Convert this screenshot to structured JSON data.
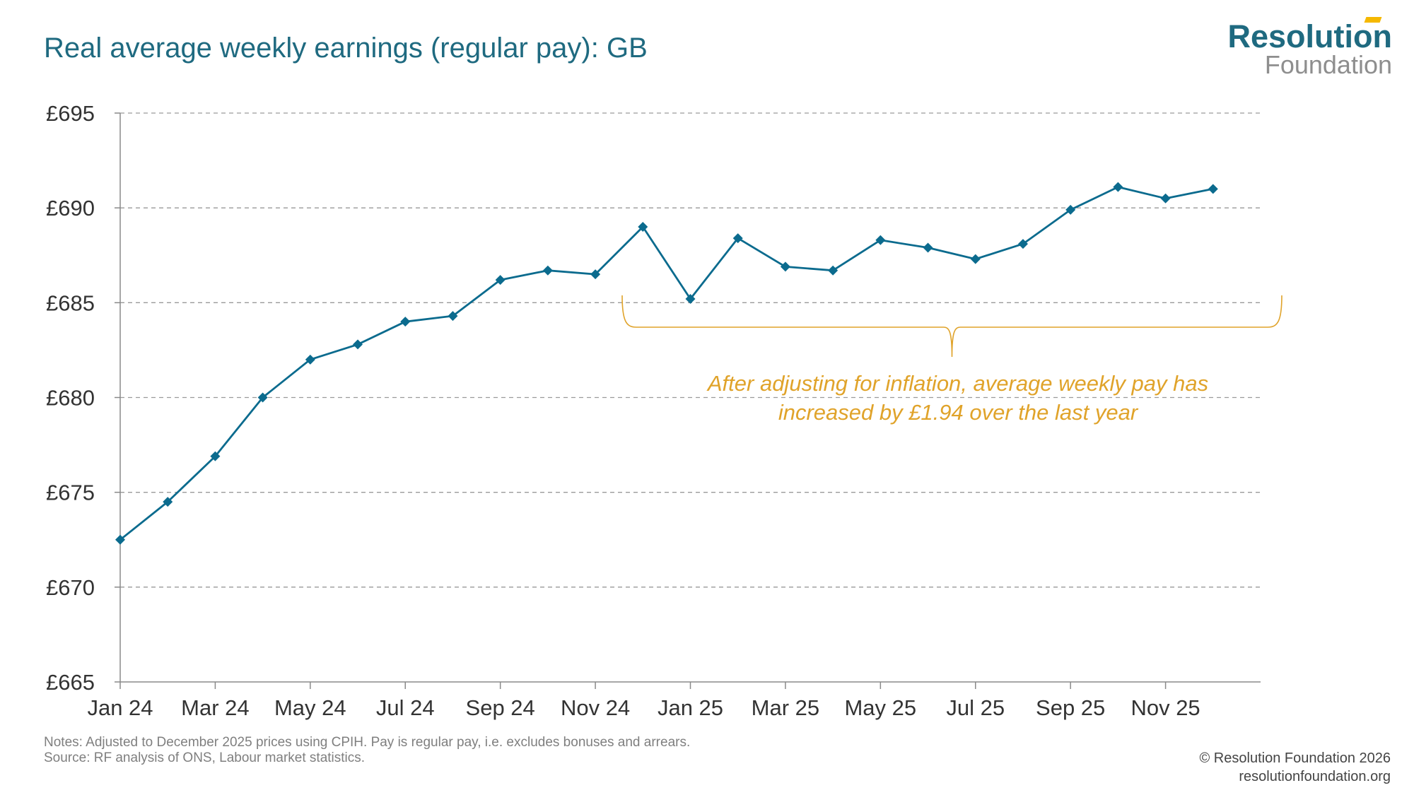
{
  "header": {
    "title": "Real average weekly earnings (regular pay): GB"
  },
  "logo": {
    "line1": "Resolution",
    "line2": "Foundation"
  },
  "footer": {
    "notes": "Notes: Adjusted to December 2025 prices using CPIH. Pay is regular pay, i.e. excludes bonuses and arrears.",
    "source": "Source: RF analysis of ONS, Labour market statistics.",
    "copyright": "© Resolution Foundation 2026",
    "website": "resolutionfoundation.org"
  },
  "colors": {
    "title": "#1f6a80",
    "line": "#0b6b8e",
    "annotation": "#e0a32a",
    "grid": "#9a9a9a"
  },
  "chart_data": {
    "type": "line",
    "title": "Real average weekly earnings (regular pay): GB",
    "xlabel": "",
    "ylabel": "",
    "ylim": [
      665,
      695
    ],
    "yticks": [
      665,
      670,
      675,
      680,
      685,
      690,
      695
    ],
    "ytick_labels": [
      "£665",
      "£670",
      "£675",
      "£680",
      "£685",
      "£690",
      "£695"
    ],
    "xtick_labels": [
      "Jan 24",
      "Mar 24",
      "May 24",
      "Jul 24",
      "Sep 24",
      "Nov 24",
      "Jan 25",
      "Mar 25",
      "May 25",
      "Jul 25",
      "Sep 25",
      "Nov 25"
    ],
    "grid": true,
    "marker": "diamond",
    "categories": [
      "Jan 24",
      "Feb 24",
      "Mar 24",
      "Apr 24",
      "May 24",
      "Jun 24",
      "Jul 24",
      "Aug 24",
      "Sep 24",
      "Oct 24",
      "Nov 24",
      "Dec 24",
      "Jan 25",
      "Feb 25",
      "Mar 25",
      "Apr 25",
      "May 25",
      "Jun 25",
      "Jul 25",
      "Aug 25",
      "Sep 25",
      "Oct 25",
      "Nov 25",
      "Dec 25"
    ],
    "series": [
      {
        "values": [
          672.5,
          674.5,
          676.9,
          680.0,
          682.0,
          682.8,
          684.0,
          684.3,
          686.2,
          686.7,
          686.5,
          689.0,
          685.2,
          688.4,
          686.9,
          686.7,
          688.3,
          687.9,
          687.3,
          688.1,
          689.9,
          691.1,
          690.5,
          691.0
        ]
      }
    ],
    "annotation": {
      "line1": "After adjusting for inflation, average weekly pay has",
      "line2": "increased by £1.94 over the last year"
    }
  }
}
